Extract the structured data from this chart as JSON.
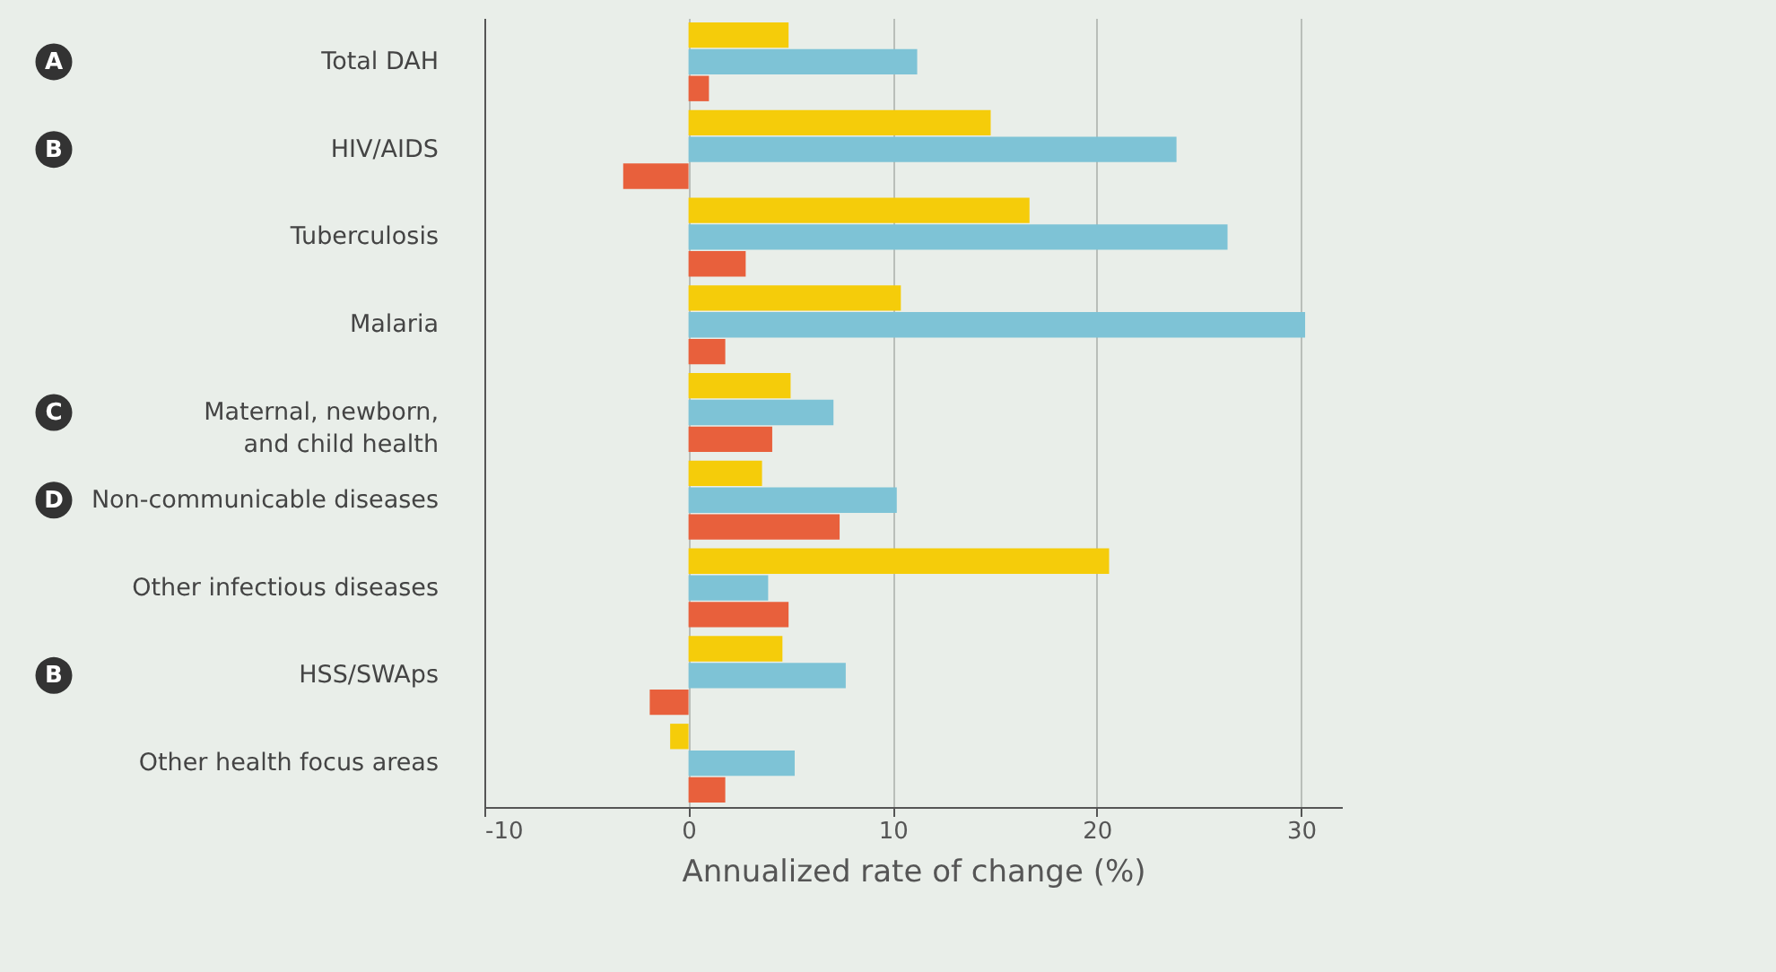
{
  "chart_data": {
    "type": "bar",
    "orientation": "horizontal",
    "categories": [
      "Total DAH",
      "HIV/AIDS",
      "Tuberculosis",
      "Malaria",
      "Maternal, newborn,\nand child health",
      "Non-communicable diseases",
      "Other infectious diseases",
      "HSS/SWAps",
      "Other health focus areas"
    ],
    "series": [
      {
        "color": "#f5cc0a",
        "values": [
          4.9,
          14.8,
          16.7,
          10.4,
          5.0,
          3.6,
          20.6,
          4.6,
          -0.9
        ]
      },
      {
        "color": "#7ec3d6",
        "values": [
          11.2,
          23.9,
          26.4,
          30.2,
          7.1,
          10.2,
          3.9,
          7.7,
          5.2
        ]
      },
      {
        "color": "#e8603c",
        "values": [
          1.0,
          -3.2,
          2.8,
          1.8,
          4.1,
          7.4,
          4.9,
          -1.9,
          1.8
        ]
      }
    ],
    "xlim": [
      -10,
      32
    ],
    "xticks": [
      -10,
      0,
      10,
      20,
      30
    ],
    "grid": "x",
    "legend": false,
    "xlabel": "Annualized rate of change (%)",
    "annotations": [
      "A",
      "B",
      "C",
      "D",
      "B"
    ]
  }
}
